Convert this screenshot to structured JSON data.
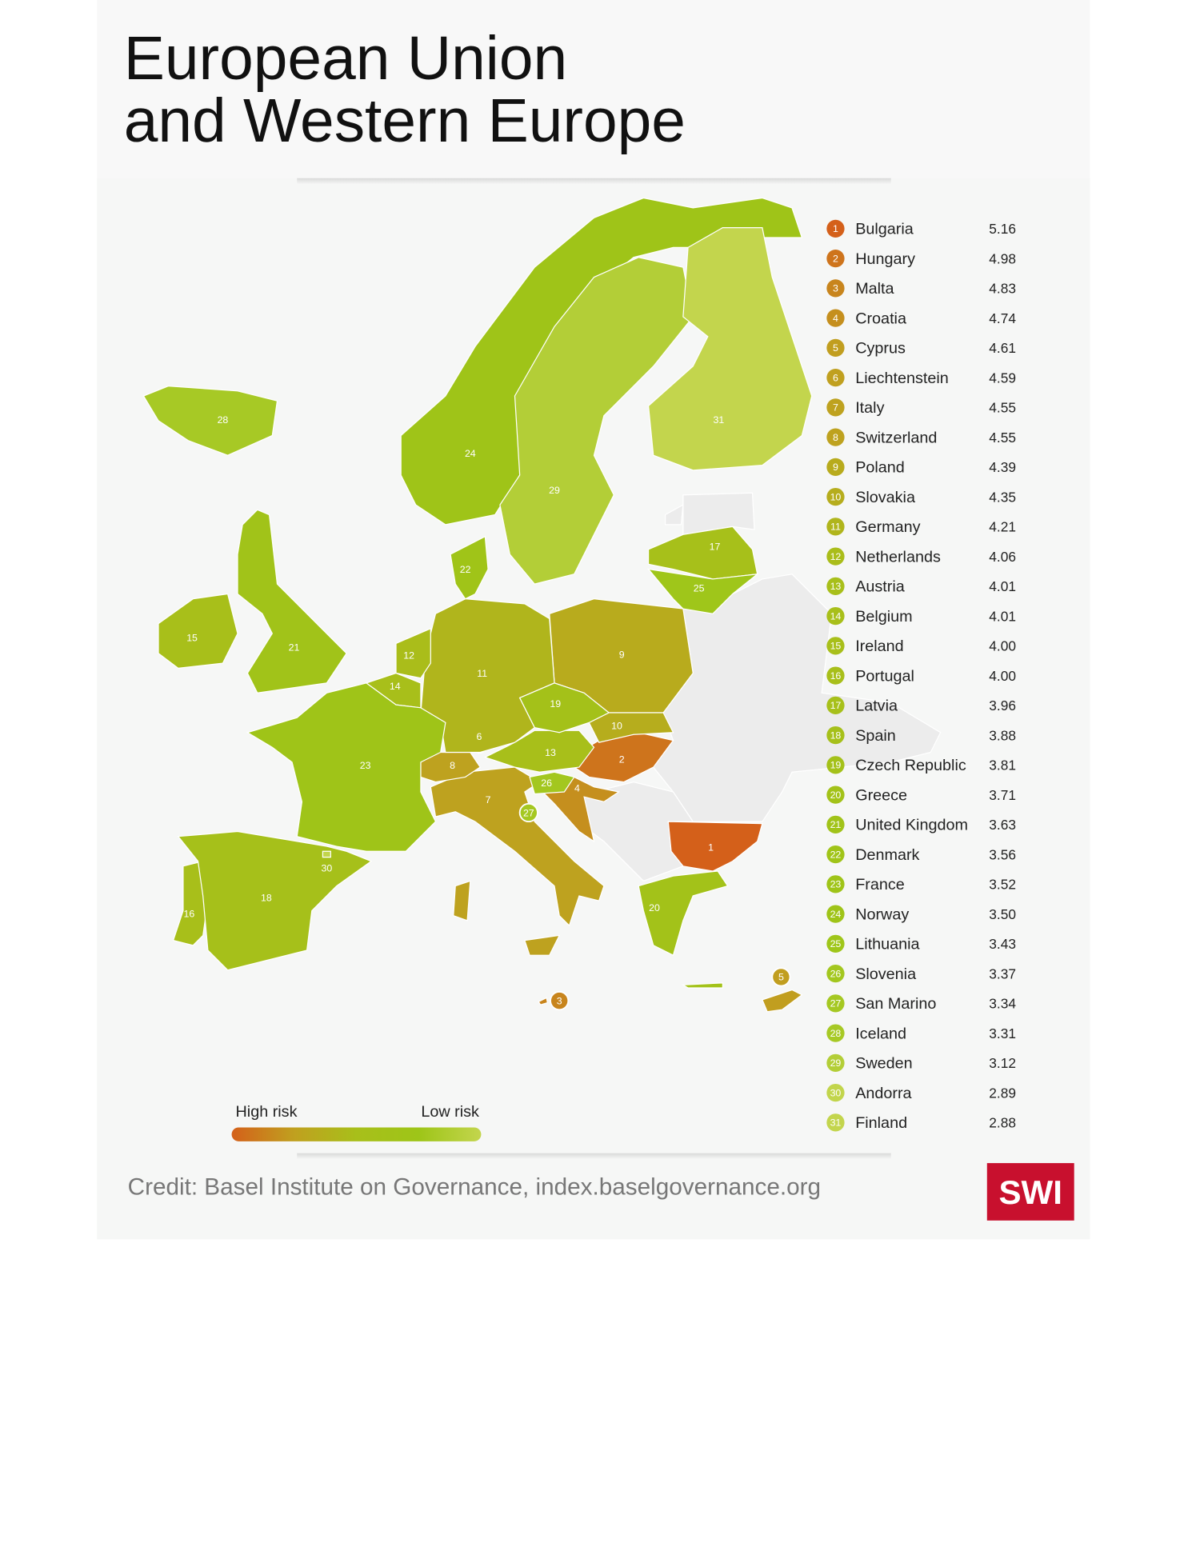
{
  "title": [
    "European Union",
    "and Western Europe"
  ],
  "rankings": [
    {
      "rank": 1,
      "country": "Bulgaria",
      "score": "5.16"
    },
    {
      "rank": 2,
      "country": "Hungary",
      "score": "4.98"
    },
    {
      "rank": 3,
      "country": "Malta",
      "score": "4.83"
    },
    {
      "rank": 4,
      "country": "Croatia",
      "score": "4.74"
    },
    {
      "rank": 5,
      "country": "Cyprus",
      "score": "4.61"
    },
    {
      "rank": 6,
      "country": "Liechtenstein",
      "score": "4.59"
    },
    {
      "rank": 7,
      "country": "Italy",
      "score": "4.55"
    },
    {
      "rank": 8,
      "country": "Switzerland",
      "score": "4.55"
    },
    {
      "rank": 9,
      "country": "Poland",
      "score": "4.39"
    },
    {
      "rank": 10,
      "country": "Slovakia",
      "score": "4.35"
    },
    {
      "rank": 11,
      "country": "Germany",
      "score": "4.21"
    },
    {
      "rank": 12,
      "country": "Netherlands",
      "score": "4.06"
    },
    {
      "rank": 13,
      "country": "Austria",
      "score": "4.01"
    },
    {
      "rank": 14,
      "country": "Belgium",
      "score": "4.01"
    },
    {
      "rank": 15,
      "country": "Ireland",
      "score": "4.00"
    },
    {
      "rank": 16,
      "country": "Portugal",
      "score": "4.00"
    },
    {
      "rank": 17,
      "country": "Latvia",
      "score": "3.96"
    },
    {
      "rank": 18,
      "country": "Spain",
      "score": "3.88"
    },
    {
      "rank": 19,
      "country": "Czech Republic",
      "score": "3.81"
    },
    {
      "rank": 20,
      "country": "Greece",
      "score": "3.71"
    },
    {
      "rank": 21,
      "country": "United Kingdom",
      "score": "3.63"
    },
    {
      "rank": 22,
      "country": "Denmark",
      "score": "3.56"
    },
    {
      "rank": 23,
      "country": "France",
      "score": "3.52"
    },
    {
      "rank": 24,
      "country": "Norway",
      "score": "3.50"
    },
    {
      "rank": 25,
      "country": "Lithuania",
      "score": "3.43"
    },
    {
      "rank": 26,
      "country": "Slovenia",
      "score": "3.37"
    },
    {
      "rank": 27,
      "country": "San Marino",
      "score": "3.34"
    },
    {
      "rank": 28,
      "country": "Iceland",
      "score": "3.31"
    },
    {
      "rank": 29,
      "country": "Sweden",
      "score": "3.12"
    },
    {
      "rank": 30,
      "country": "Andorra",
      "score": "2.89"
    },
    {
      "rank": 31,
      "country": "Finland",
      "score": "2.88"
    }
  ],
  "legend": {
    "high": "High risk",
    "low": "Low risk",
    "colors": [
      "#d4601a",
      "#c0a01f",
      "#a8bf1a",
      "#9ec518",
      "#c3d54d"
    ]
  },
  "credit": "Credit: Basel Institute on Governance, index.baselgovernance.org",
  "logo": "SWI"
}
